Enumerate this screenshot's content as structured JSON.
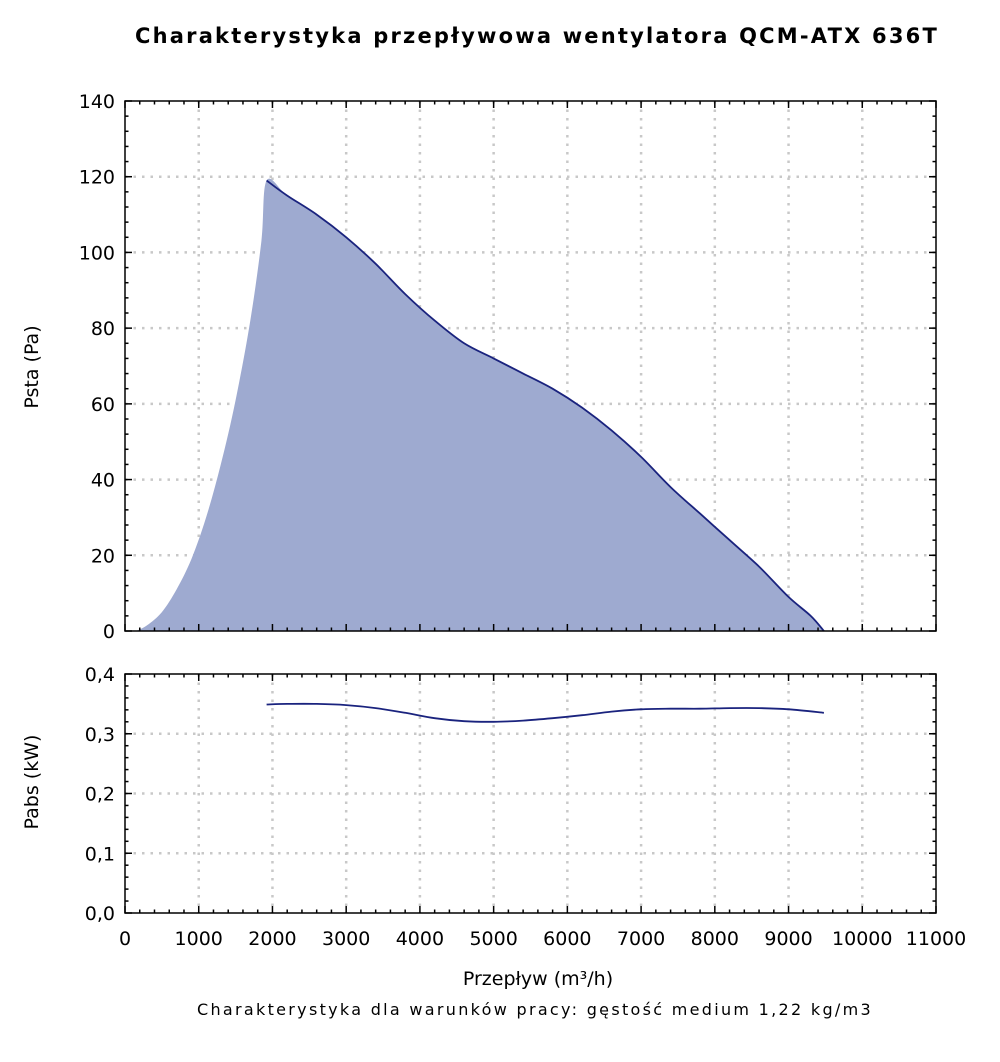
{
  "title": "Charakterystyka przepływowa wentylatora QCM-ATX 636T",
  "footnote": "Charakterystyka dla warunków pracy: gęstość medium 1,22 kg/m3",
  "colors": {
    "fill": "#9eaad0",
    "line": "#1a237e",
    "grid": "#c8c8c8",
    "axis": "#000000"
  },
  "chart_data": [
    {
      "type": "area",
      "ylabel": "Psta (Pa)",
      "xlim": [
        0,
        11000
      ],
      "ylim": [
        0,
        140
      ],
      "x_ticks": [
        0,
        1000,
        2000,
        3000,
        4000,
        5000,
        6000,
        7000,
        8000,
        9000,
        10000,
        11000
      ],
      "y_ticks": [
        0,
        20,
        40,
        60,
        80,
        100,
        120,
        140
      ],
      "y_tick_labels": [
        "0",
        "20",
        "40",
        "60",
        "80",
        "100",
        "120",
        "140"
      ],
      "grid": true,
      "series": [
        {
          "x": [
            150,
            300,
            500,
            700,
            900,
            1100,
            1300,
            1500,
            1700,
            1850,
            1920,
            2200,
            2600,
            3000,
            3400,
            3800,
            4200,
            4600,
            5000,
            5400,
            5800,
            6200,
            6600,
            7000,
            7400,
            7800,
            8200,
            8600,
            9000,
            9300,
            9480
          ],
          "y": [
            0,
            1.5,
            5,
            11,
            19,
            30,
            44,
            61,
            82,
            103,
            119,
            115,
            110,
            104,
            97,
            89,
            82,
            76,
            72,
            68,
            64,
            59,
            53,
            46,
            38,
            31,
            24,
            17,
            9,
            4,
            0
          ]
        }
      ]
    },
    {
      "type": "line",
      "ylabel": "Pabs (kW)",
      "xlabel": "Przepływ (m³/h)",
      "xlim": [
        0,
        11000
      ],
      "ylim": [
        0,
        0.4
      ],
      "x_ticks": [
        0,
        1000,
        2000,
        3000,
        4000,
        5000,
        6000,
        7000,
        8000,
        9000,
        10000,
        11000
      ],
      "x_tick_labels": [
        "0",
        "1000",
        "2000",
        "3000",
        "4000",
        "5000",
        "6000",
        "7000",
        "8000",
        "9000",
        "10000",
        "11000"
      ],
      "y_ticks": [
        0,
        0.1,
        0.2,
        0.3,
        0.4
      ],
      "y_tick_labels": [
        "0,0",
        "0,1",
        "0,2",
        "0,3",
        "0,4"
      ],
      "grid": true,
      "series": [
        {
          "x": [
            1920,
            2200,
            2600,
            3000,
            3400,
            3800,
            4200,
            4600,
            5000,
            5400,
            5800,
            6200,
            6600,
            7000,
            7400,
            7800,
            8200,
            8600,
            9000,
            9480
          ],
          "y": [
            0.349,
            0.35,
            0.35,
            0.348,
            0.343,
            0.335,
            0.326,
            0.321,
            0.32,
            0.322,
            0.326,
            0.331,
            0.337,
            0.341,
            0.342,
            0.342,
            0.343,
            0.343,
            0.341,
            0.335
          ]
        }
      ]
    }
  ]
}
